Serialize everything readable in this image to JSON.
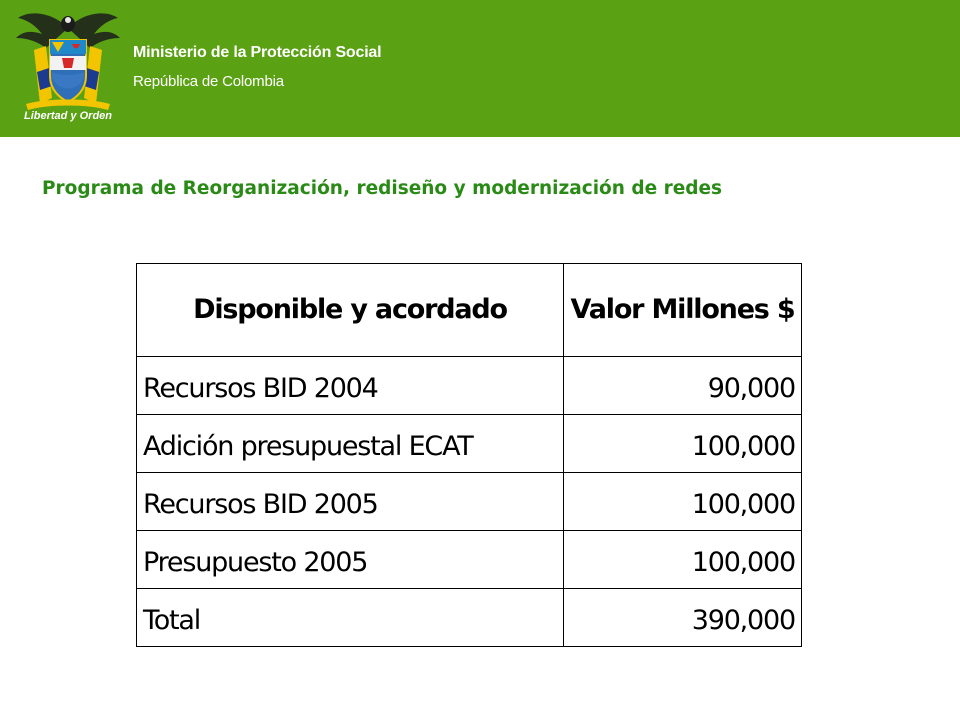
{
  "header": {
    "ministry": "Ministerio de la Protección Social",
    "republic": "República de Colombia",
    "logo_motto": "Libertad y Orden",
    "colors": {
      "banner": "#5aa214",
      "text": "#ffffff"
    }
  },
  "slide": {
    "title": "Programa de Reorganización, rediseño y modernización de redes",
    "title_color": "#2a8a16"
  },
  "table": {
    "headers": [
      "Disponible y acordado",
      "Valor Millones $"
    ],
    "rows": [
      {
        "concept": "Recursos BID 2004",
        "value": "90,000"
      },
      {
        "concept": "Adición presupuestal ECAT",
        "value": "100,000"
      },
      {
        "concept": "Recursos BID 2005",
        "value": "100,000"
      },
      {
        "concept": "Presupuesto 2005",
        "value": "100,000"
      },
      {
        "concept": "Total",
        "value": "390,000"
      }
    ]
  }
}
